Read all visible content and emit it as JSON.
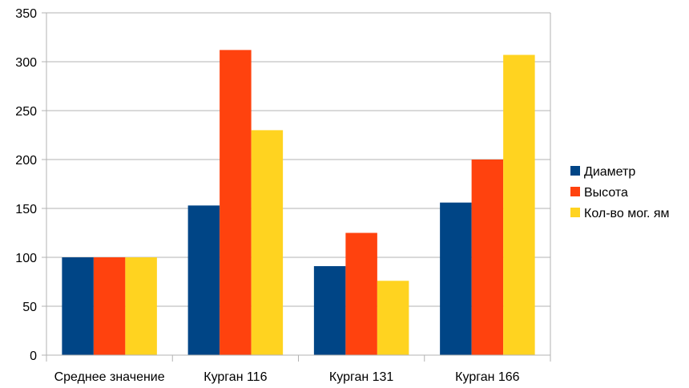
{
  "chart_data": {
    "type": "bar",
    "categories": [
      "Среднее значение",
      "Курган 116",
      "Курган 131",
      "Курган 166"
    ],
    "series": [
      {
        "name": "Диаметр",
        "values": [
          100,
          153,
          91,
          156
        ],
        "color": "#004586"
      },
      {
        "name": "Высота",
        "values": [
          100,
          312,
          125,
          200
        ],
        "color": "#ff420e"
      },
      {
        "name": "Кол-во мог. ям",
        "values": [
          100,
          230,
          76,
          307
        ],
        "color": "#ffd320"
      }
    ],
    "ylim": [
      0,
      350
    ],
    "yticks": [
      0,
      50,
      100,
      150,
      200,
      250,
      300,
      350
    ],
    "grid": true,
    "legend": "right"
  }
}
